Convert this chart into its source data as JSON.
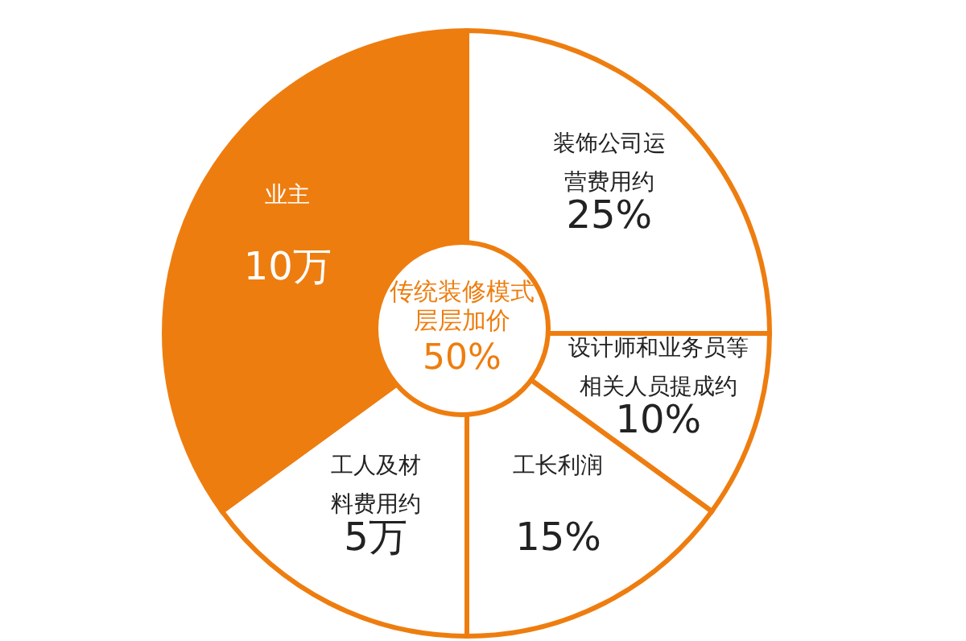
{
  "chart_data": {
    "type": "pie",
    "categories": [
      "装饰公司运营费用约",
      "设计师和业务员等相关人员提成约",
      "工长利润",
      "工人及材料费用约",
      "业主"
    ],
    "values": [
      25,
      10,
      15,
      15,
      35
    ],
    "value_labels": [
      "25%",
      "10%",
      "15%",
      null,
      null
    ],
    "colors": [
      "#ffffff",
      "#ffffff",
      "#ffffff",
      "#ffffff",
      "#ee7d0f"
    ],
    "annotations": [
      "传统装修模式",
      "层层加价",
      "50%",
      {
        "text": "5万",
        "x": "工人及材料费用约"
      },
      {
        "text": "10万",
        "x": "业主"
      }
    ]
  }
}
